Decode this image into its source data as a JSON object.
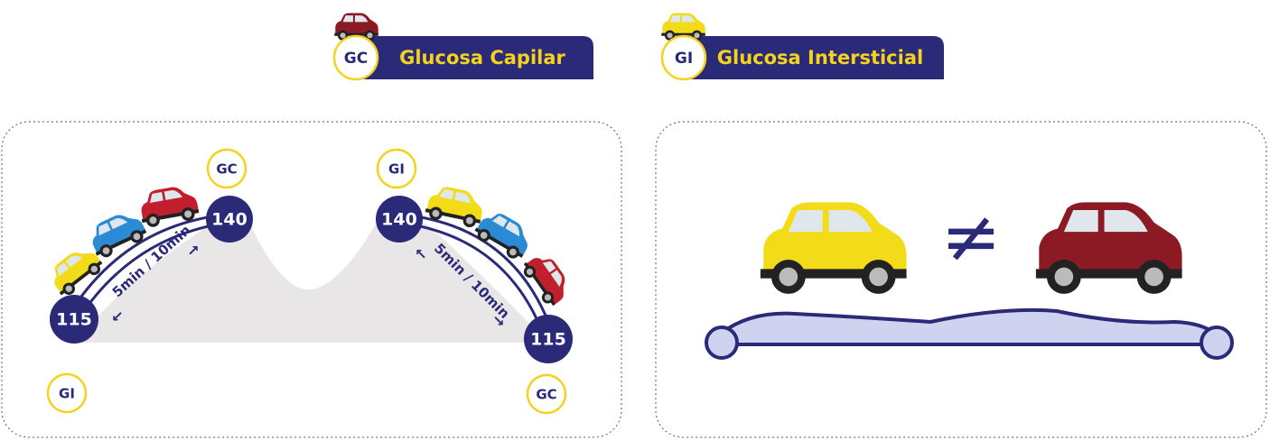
{
  "legend": [
    {
      "badge": "GC",
      "label": "Glucosa Capilar"
    },
    {
      "badge": "GI",
      "label": "Glucosa Intersticial"
    }
  ],
  "left_panel": {
    "rise": {
      "start_badge": "GI",
      "start_value": "115",
      "peak_badge": "GC",
      "peak_value": "140",
      "delay": "5min / 10min"
    },
    "fall": {
      "peak_badge": "GI",
      "peak_value": "140",
      "end_badge": "GC",
      "end_value": "115",
      "delay": "5min / 10min"
    }
  },
  "right_panel": {
    "symbol": "≠"
  }
}
